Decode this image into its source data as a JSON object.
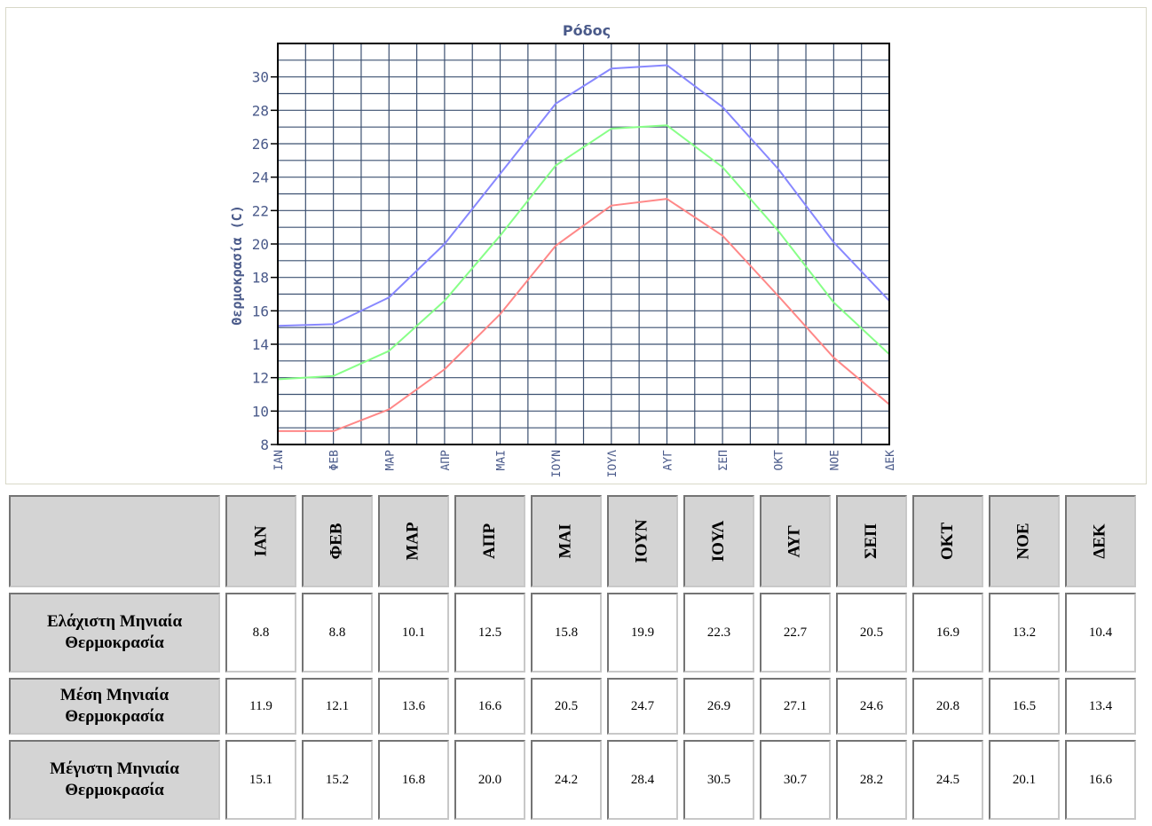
{
  "chart_data": {
    "type": "line",
    "title": "Ρόδος",
    "ylabel": "Θερμοκρασία (C)",
    "xlabel": "",
    "categories": [
      "ΙΑΝ",
      "ΦΕΒ",
      "ΜΑΡ",
      "ΑΠΡ",
      "ΜΑΙ",
      "ΙΟΥΝ",
      "ΙΟΥΛ",
      "ΑΥΓ",
      "ΣΕΠ",
      "ΟΚΤ",
      "ΝΟΕ",
      "ΔΕΚ"
    ],
    "y_ticks": [
      8,
      10,
      12,
      14,
      16,
      18,
      20,
      22,
      24,
      26,
      28,
      30
    ],
    "ylim": [
      8,
      32
    ],
    "grid": true,
    "series": [
      {
        "values": [
          15.1,
          15.2,
          16.8,
          20.0,
          24.2,
          28.4,
          30.5,
          30.7,
          28.2,
          24.5,
          20.1,
          16.6
        ],
        "color": "#8888ff"
      },
      {
        "values": [
          11.9,
          12.1,
          13.6,
          16.6,
          20.5,
          24.7,
          26.9,
          27.1,
          24.6,
          20.8,
          16.5,
          13.4
        ],
        "color": "#88ff88"
      },
      {
        "values": [
          8.8,
          8.8,
          10.1,
          12.5,
          15.8,
          19.9,
          22.3,
          22.7,
          20.5,
          16.9,
          13.2,
          10.4
        ],
        "color": "#ff8888"
      }
    ]
  },
  "table": {
    "months": [
      "ΙΑΝ",
      "ΦΕΒ",
      "ΜΑΡ",
      "ΑΠΡ",
      "ΜΑΙ",
      "ΙΟΥΝ",
      "ΙΟΥΛ",
      "ΑΥΓ",
      "ΣΕΠ",
      "ΟΚΤ",
      "ΝΟΕ",
      "ΔΕΚ"
    ],
    "rows": [
      {
        "label": "Ελάχιστη Μηνιαία Θερμοκρασία",
        "values": [
          "8.8",
          "8.8",
          "10.1",
          "12.5",
          "15.8",
          "19.9",
          "22.3",
          "22.7",
          "20.5",
          "16.9",
          "13.2",
          "10.4"
        ]
      },
      {
        "label": "Μέση Μηνιαία Θερμοκρασία",
        "values": [
          "11.9",
          "12.1",
          "13.6",
          "16.6",
          "20.5",
          "24.7",
          "26.9",
          "27.1",
          "24.6",
          "20.8",
          "16.5",
          "13.4"
        ]
      },
      {
        "label": "Μέγιστη Μηνιαία Θερμοκρασία",
        "values": [
          "15.1",
          "15.2",
          "16.8",
          "20.0",
          "24.2",
          "28.4",
          "30.5",
          "30.7",
          "28.2",
          "24.5",
          "20.1",
          "16.6"
        ]
      }
    ]
  }
}
